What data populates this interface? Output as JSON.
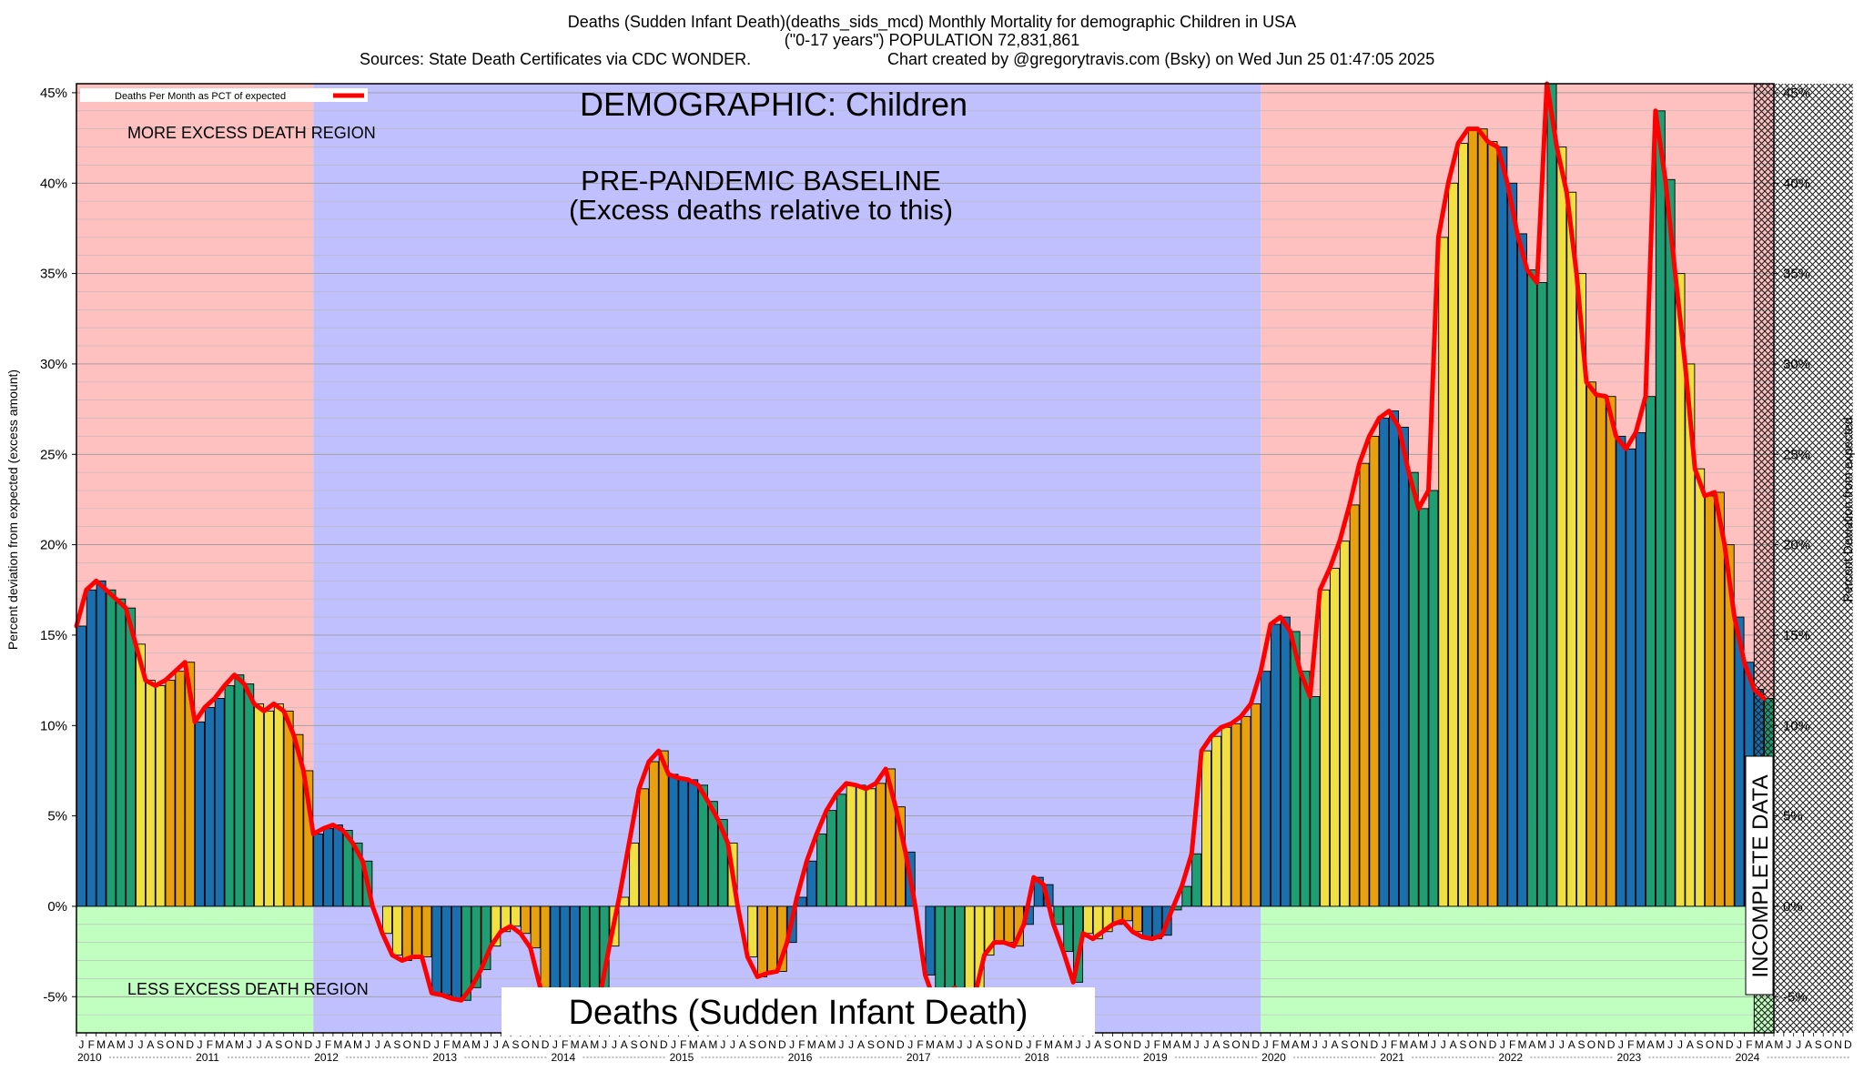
{
  "header": {
    "line1": "Deaths (Sudden Infant Death)(deaths_sids_mcd) Monthly Mortality for demographic Children in USA",
    "line2": "(\"0-17 years\") POPULATION 72,831,861",
    "line3_left": "Sources: State Death Certificates via CDC WONDER.",
    "line3_right": "Chart created by @gregorytravis.com (Bsky) on Wed Jun 25 01:47:05 2025"
  },
  "annotations": {
    "demographic": "DEMOGRAPHIC: Children",
    "baseline_1": "PRE-PANDEMIC BASELINE",
    "baseline_2": "(Excess deaths relative to this)",
    "more_region": "MORE EXCESS DEATH REGION",
    "less_region": "LESS EXCESS DEATH REGION",
    "incomplete": "INCOMPLETE DATA",
    "bottom_title": "Deaths (Sudden Infant Death)"
  },
  "colors": {
    "excess_bg": "#ffc0c0",
    "baseline_bg": "#c0c0ff",
    "less_bg": "#c0ffc0",
    "line": "#ff0000",
    "q1": "#1a6fae",
    "q2": "#1f9e73",
    "q3": "#f0e042",
    "q4": "#e8a10e"
  },
  "chart_data": {
    "type": "bar",
    "title": "Deaths (Sudden Infant Death)(deaths_sids_mcd) Monthly Mortality for demographic Children in USA",
    "ylabel": "Percent deviation from expected (excess amount)",
    "ylabel_right": "Percent Deviation from expected",
    "legend": "Deaths Per Month as PCT of expected",
    "legend_position": "top-left",
    "ylim": [
      -7,
      45.5
    ],
    "yticks": [
      -5,
      0,
      5,
      10,
      15,
      20,
      25,
      30,
      35,
      40,
      45
    ],
    "ytick_suffix": "%",
    "grid": true,
    "years": [
      "2010",
      "2011",
      "2012",
      "2013",
      "2014",
      "2015",
      "2016",
      "2017",
      "2018",
      "2019",
      "2020",
      "2021",
      "2022",
      "2023",
      "2024"
    ],
    "month_labels": [
      "J",
      "F",
      "M",
      "A",
      "M",
      "J",
      "J",
      "A",
      "S",
      "O",
      "N",
      "D"
    ],
    "baseline_period": [
      "2012-01",
      "2019-12"
    ],
    "incomplete_from": "2024-03",
    "x_start": "2010-01",
    "values": [
      15.5,
      17.5,
      18,
      17.5,
      17,
      16.5,
      14.5,
      12.5,
      12.2,
      12.5,
      13,
      13.5,
      10.2,
      11,
      11.5,
      12.2,
      12.8,
      12.3,
      11.2,
      10.8,
      11.2,
      10.8,
      9.5,
      7.5,
      4,
      4.3,
      4.5,
      4.2,
      3.5,
      2.5,
      0,
      -1.5,
      -2.7,
      -3,
      -2.8,
      -2.8,
      -4.8,
      -4.9,
      -5.1,
      -5.2,
      -4.5,
      -3.5,
      -2.2,
      -1.4,
      -1.1,
      -1.5,
      -2.3,
      -4.5,
      -6.8,
      -6.7,
      -6.2,
      -5.8,
      -5.4,
      -5.1,
      -2.2,
      0.5,
      3.5,
      6.5,
      8,
      8.6,
      7.3,
      7.1,
      7,
      6.7,
      5.8,
      4.8,
      3.5,
      0,
      -2.8,
      -3.9,
      -3.7,
      -3.6,
      -2,
      0.5,
      2.5,
      4,
      5.3,
      6.2,
      6.8,
      6.7,
      6.5,
      6.8,
      7.6,
      5.5,
      3,
      0,
      -3.8,
      -5.3,
      -4.8,
      -4.5,
      -5.5,
      -5,
      -2.7,
      -2,
      -2,
      -2.2,
      -1,
      1.6,
      1.2,
      -1,
      -2.5,
      -4.2,
      -1.5,
      -1.8,
      -1.4,
      -1,
      -0.8,
      -1.4,
      -1.7,
      -1.8,
      -1.6,
      -0.2,
      1.1,
      2.9,
      8.6,
      9.4,
      9.9,
      10.1,
      10.5,
      11.2,
      13,
      15.6,
      16,
      15.2,
      13,
      11.6,
      17.5,
      18.7,
      20.2,
      22.2,
      24.5,
      26,
      27,
      27.4,
      26.5,
      24,
      22,
      23,
      37,
      40,
      42.2,
      43,
      43,
      42.3,
      42,
      40,
      37.2,
      35.2,
      34.5,
      45.5,
      42,
      39.5,
      35,
      29,
      28.3,
      28.2,
      26,
      25.3,
      26.2,
      28.2,
      44,
      40.2,
      35,
      30,
      24.2,
      22.7,
      22.9,
      20,
      16,
      13.5,
      12,
      11.5
    ]
  }
}
